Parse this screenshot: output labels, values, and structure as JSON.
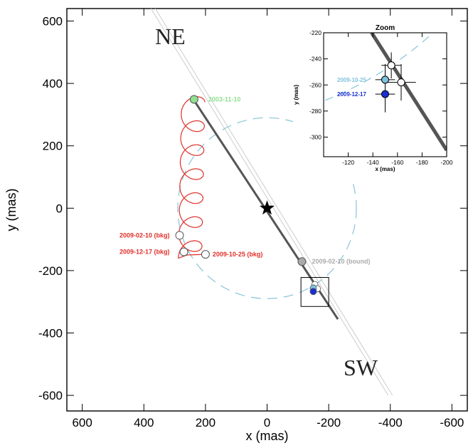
{
  "chart_data": [
    {
      "type": "scatter",
      "title": "",
      "xlabel": "x (mas)",
      "ylabel": "y (mas)",
      "xlim": [
        650,
        -650
      ],
      "ylim": [
        -650,
        640
      ],
      "x_ticks": [
        600,
        400,
        200,
        0,
        -200,
        -400,
        -600
      ],
      "y_ticks": [
        -600,
        -400,
        -200,
        0,
        200,
        400,
        600
      ],
      "direction_labels": {
        "ne": "NE",
        "sw": "SW"
      },
      "colors": {
        "background_track": "#e0302a",
        "bound_track": "#555555",
        "circle": "#89c4d8",
        "epoch_2003": "#90e090",
        "epoch_2009_bound": "#aaaaaa",
        "epoch_2009_10_25": "#7fc3dd",
        "epoch_2009_12_17": "#1a2fd0",
        "star": "#000000"
      },
      "star": {
        "x": 0,
        "y": 0
      },
      "circle_radius": 290,
      "bound_track_line": {
        "x": [
          240,
          -230
        ],
        "y": [
          350,
          -356
        ]
      },
      "bound_track_extension": {
        "x": [
          370,
          -400
        ],
        "y": [
          640,
          -600
        ]
      },
      "points": [
        {
          "label": "2003-11-10",
          "x": 237,
          "y": 349,
          "color": "#90e090"
        },
        {
          "label": "2009-02-10 (bound)",
          "x": -113,
          "y": -171,
          "color": "#aaaaaa"
        },
        {
          "label": "2009-02-10 (bkg)",
          "x": 284,
          "y": -87,
          "color": "#ffffff"
        },
        {
          "label": "2009-12-17 (bkg)",
          "x": 270,
          "y": -140,
          "color": "#ffffff"
        },
        {
          "label": "2009-10-25 (bkg)",
          "x": 200,
          "y": -148,
          "color": "#ffffff"
        }
      ],
      "box_region": {
        "x": [
          -110,
          -200
        ],
        "y": [
          -222,
          -315
        ]
      }
    },
    {
      "type": "scatter",
      "title": "Zoom",
      "xlabel": "x (mas)",
      "ylabel": "y (mas)",
      "xlim": [
        -100,
        -200
      ],
      "ylim": [
        -315,
        -220
      ],
      "x_ticks": [
        -120,
        -140,
        -160,
        -180,
        -200
      ],
      "y_ticks": [
        -300,
        -280,
        -260,
        -240,
        -220
      ],
      "points": [
        {
          "x": -155,
          "y": -245,
          "xerr": 8,
          "yerr": 10,
          "color": "#ffffff"
        },
        {
          "x": -163,
          "y": -258,
          "xerr": 12,
          "yerr": 14,
          "color": "#ffffff"
        },
        {
          "label": "2009-10-25",
          "x": -150,
          "y": -256,
          "xerr": 8,
          "yerr": 12,
          "color": "#7fc3dd"
        },
        {
          "label": "2009-12-17",
          "x": -150,
          "y": -267,
          "xerr": 8,
          "yerr": 14,
          "color": "#1a2fd0"
        }
      ],
      "track_line": {
        "x": [
          -139,
          -200
        ],
        "y": [
          -220,
          -310
        ]
      }
    }
  ]
}
